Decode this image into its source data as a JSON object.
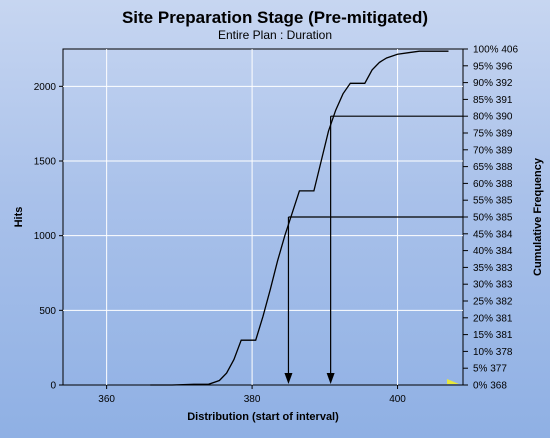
{
  "chart_data": {
    "type": "line",
    "title": "Site Preparation Stage (Pre-mitigated)",
    "subtitle": "Entire Plan : Duration",
    "xlabel": "Distribution (start of interval)",
    "ylabel": "Hits",
    "y2label": "Cumulative Frequency",
    "xlim": [
      354,
      409
    ],
    "ylim": [
      0,
      2250
    ],
    "x_ticks": [
      360,
      380,
      400
    ],
    "y_ticks": [
      0,
      500,
      1000,
      1500,
      2000
    ],
    "grid": true,
    "right_ticks": [
      {
        "pct": 0,
        "label": "0%  368"
      },
      {
        "pct": 5,
        "label": "5%  377"
      },
      {
        "pct": 10,
        "label": "10%  378"
      },
      {
        "pct": 15,
        "label": "15%  381"
      },
      {
        "pct": 20,
        "label": "20%  381"
      },
      {
        "pct": 25,
        "label": "25%  382"
      },
      {
        "pct": 30,
        "label": "30%  383"
      },
      {
        "pct": 35,
        "label": "35%  383"
      },
      {
        "pct": 40,
        "label": "40%  384"
      },
      {
        "pct": 45,
        "label": "45%  384"
      },
      {
        "pct": 50,
        "label": "50%  385"
      },
      {
        "pct": 55,
        "label": "55%  385"
      },
      {
        "pct": 60,
        "label": "60%  388"
      },
      {
        "pct": 65,
        "label": "65%  388"
      },
      {
        "pct": 70,
        "label": "70%  389"
      },
      {
        "pct": 75,
        "label": "75%  389"
      },
      {
        "pct": 80,
        "label": "80%  390"
      },
      {
        "pct": 85,
        "label": "85%  391"
      },
      {
        "pct": 90,
        "label": "90%  392"
      },
      {
        "pct": 95,
        "label": "95%  396"
      },
      {
        "pct": 100,
        "label": "100%  406"
      }
    ],
    "series": [
      {
        "values": [
          [
            366,
            0
          ],
          [
            369,
            0
          ],
          [
            372,
            5
          ],
          [
            374,
            5
          ],
          [
            375.5,
            30
          ],
          [
            376.5,
            80
          ],
          [
            377.5,
            170
          ],
          [
            378.5,
            300
          ],
          [
            380.5,
            300
          ],
          [
            381.5,
            460
          ],
          [
            382.5,
            640
          ],
          [
            383.5,
            830
          ],
          [
            384.5,
            1000
          ],
          [
            385.5,
            1150
          ],
          [
            386.5,
            1300
          ],
          [
            388.5,
            1300
          ],
          [
            389.5,
            1500
          ],
          [
            390.5,
            1700
          ],
          [
            391.5,
            1840
          ],
          [
            392.5,
            1950
          ],
          [
            393.5,
            2020
          ],
          [
            395.5,
            2020
          ],
          [
            396.5,
            2110
          ],
          [
            397.5,
            2160
          ],
          [
            398.5,
            2190
          ],
          [
            400,
            2215
          ],
          [
            401.5,
            2225
          ],
          [
            403,
            2235
          ],
          [
            407,
            2235
          ]
        ]
      }
    ],
    "percentile_markers": [
      {
        "pct": 50,
        "x": 385
      },
      {
        "pct": 80,
        "x": 390.8
      }
    ],
    "highlight_color": "#e8e83a",
    "line_color": "#000000",
    "grid_color": "#ffffff"
  }
}
